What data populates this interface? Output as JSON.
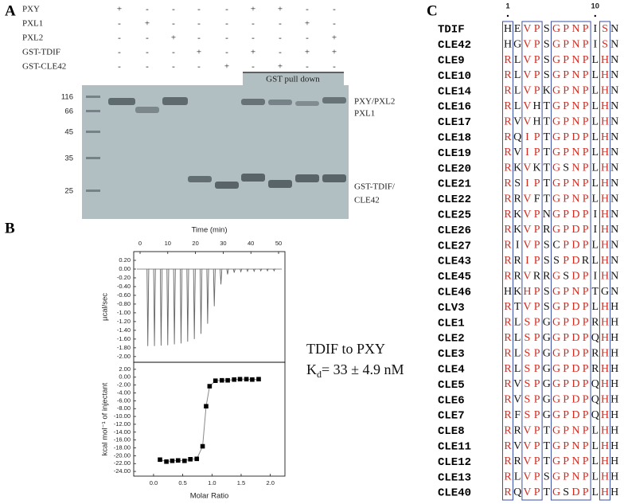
{
  "gel": {
    "label": "A",
    "rows": [
      {
        "name": "PXY",
        "lanes": [
          "+",
          "-",
          "-",
          "-",
          "-",
          "+",
          "+",
          "-",
          "-"
        ]
      },
      {
        "name": "PXL1",
        "lanes": [
          "-",
          "+",
          "-",
          "-",
          "-",
          "-",
          "-",
          "+",
          "-"
        ]
      },
      {
        "name": "PXL2",
        "lanes": [
          "-",
          "-",
          "+",
          "-",
          "-",
          "-",
          "-",
          "-",
          "+"
        ]
      },
      {
        "name": "GST-TDIF",
        "lanes": [
          "-",
          "-",
          "-",
          "+",
          "-",
          "+",
          "-",
          "+",
          "+"
        ]
      },
      {
        "name": "GST-CLE42",
        "lanes": [
          "-",
          "-",
          "-",
          "-",
          "+",
          "-",
          "+",
          "-",
          "-"
        ]
      }
    ],
    "pull_down": "GST pull down",
    "markers": [
      116,
      66,
      45,
      35,
      25
    ],
    "band_labels": [
      "PXY/PXL2",
      "PXL1",
      "GST-TDIF/",
      "CLE42"
    ]
  },
  "chart_data": [
    {
      "type": "spike",
      "panel_label": "B",
      "xlabel": "Time (min)",
      "ylabel": "µcal/sec",
      "color": "#666666",
      "xlim": [
        -2.3,
        52.3
      ],
      "xticks": [
        0,
        10,
        20,
        30,
        40,
        50
      ],
      "ylim": [
        -2.13,
        0.4
      ],
      "yticks": [
        {
          "value": 0.2,
          "label": "0.20"
        },
        {
          "value": 0,
          "label": "0.00"
        },
        {
          "value": -0.2,
          "label": "-0.20"
        },
        {
          "value": -0.4,
          "label": "-0.40"
        },
        {
          "value": -0.6,
          "label": "-0.60"
        },
        {
          "value": -0.8,
          "label": "-0.80"
        },
        {
          "value": -1.0,
          "label": "-1.00"
        },
        {
          "value": -1.2,
          "label": "-1.20"
        },
        {
          "value": -1.4,
          "label": "-1.40"
        },
        {
          "value": -1.6,
          "label": "-1.60"
        },
        {
          "value": -1.8,
          "label": "-1.80"
        },
        {
          "value": -2.0,
          "label": "-2.00"
        }
      ],
      "x": [
        2.5,
        4.9,
        7.3,
        9.7,
        12.1,
        14.5,
        16.9,
        19.3,
        21.7,
        24.1,
        26.5,
        28.9,
        31.3,
        33.7,
        36.1,
        38.5,
        40.9,
        43.3,
        45.7,
        48.1
      ],
      "values": [
        -1.76,
        -1.76,
        -1.75,
        -1.74,
        -1.72,
        -1.7,
        -1.66,
        -1.6,
        -1.48,
        -1.25,
        -0.85,
        -0.35,
        -0.12,
        -0.08,
        -0.06,
        -0.05,
        -0.05,
        -0.04,
        -0.04,
        -0.04
      ]
    },
    {
      "type": "scatter",
      "xlabel": "Molar Ratio",
      "ylabel": "kcal mol⁻¹ of injectant",
      "color": "#000000",
      "line_color": "#888888",
      "xlim": [
        -0.34,
        2.25
      ],
      "xticks": [
        {
          "value": 0,
          "label": "0.0"
        },
        {
          "value": 0.5,
          "label": "0.5"
        },
        {
          "value": 1,
          "label": "1.0"
        },
        {
          "value": 1.5,
          "label": "1.5"
        },
        {
          "value": 2,
          "label": "2.0"
        }
      ],
      "ylim": [
        -25.2,
        3.8
      ],
      "yticks": [
        {
          "value": 2,
          "label": "2.00"
        },
        {
          "value": 0,
          "label": "0.00"
        },
        {
          "value": -2,
          "label": "-2.00"
        },
        {
          "value": -4,
          "label": "-4.00"
        },
        {
          "value": -6,
          "label": "-6.00"
        },
        {
          "value": -8,
          "label": "-8.00"
        },
        {
          "value": -10,
          "label": "-10.00"
        },
        {
          "value": -12,
          "label": "-12.00"
        },
        {
          "value": -14,
          "label": "-14.00"
        },
        {
          "value": -16,
          "label": "-16.00"
        },
        {
          "value": -18,
          "label": "-18.00"
        },
        {
          "value": -20,
          "label": "-20.00"
        },
        {
          "value": -22,
          "label": "-22.00"
        },
        {
          "value": -24,
          "label": "-24.00"
        }
      ],
      "x": [
        0.11,
        0.22,
        0.32,
        0.42,
        0.53,
        0.63,
        0.74,
        0.84,
        0.9,
        0.96,
        1.06,
        1.17,
        1.27,
        1.38,
        1.48,
        1.59,
        1.69,
        1.8
      ],
      "values": [
        -21.0,
        -21.5,
        -21.3,
        -21.2,
        -21.3,
        -20.9,
        -20.8,
        -17.6,
        -7.4,
        -2.3,
        -0.9,
        -0.8,
        -0.8,
        -0.6,
        -0.5,
        -0.5,
        -0.6,
        -0.5
      ],
      "annotation": "TDIF to PXY",
      "kd": {
        "symbol": "K",
        "subscript": "d",
        "value": "= 33 ± 4.9 nM"
      }
    }
  ],
  "alignment": {
    "label": "C",
    "ruler": [
      1,
      10
    ],
    "names": [
      "TDIF",
      "CLE42",
      "CLE9",
      "CLE10",
      "CLE14",
      "CLE16",
      "CLE17",
      "CLE18",
      "CLE19",
      "CLE20",
      "CLE21",
      "CLE22",
      "CLE25",
      "CLE26",
      "CLE27",
      "CLE43",
      "CLE45",
      "CLE46",
      "CLV3",
      "CLE1",
      "CLE2",
      "CLE3",
      "CLE4",
      "CLE5",
      "CLE6",
      "CLE7",
      "CLE8",
      "CLE11",
      "CLE12",
      "CLE13",
      "CLE40"
    ],
    "sequences": [
      "HEVPSGPNPISN",
      "HGVPSGPNPISN",
      "RLVPSGPNPLHN",
      "RLVPSGPNPLHN",
      "RLVPKGPNPLHN",
      "RLVHTGPNPLHN",
      "RVVHTGPNPLHN",
      "RQIPTGPDPLHN",
      "RVIPTGPNPLHN",
      "RKVKTGSNPLHN",
      "RSIPTGPNPLHN",
      "RRVFTGPNPLHN",
      "RKVPNGPDPIHN",
      "RKVPRGPDPIHN",
      "RIVPSCPDPLHN",
      "RRIPSSPDRLHN",
      "RRVRRGSDPIHN",
      "HKHPSGPNPTGN",
      "RTVPSGPDPLHH",
      "RLSPGGPDPRHH",
      "RLSPGGPDPQHH",
      "RLSPGGPDPRHH",
      "RLSPGGPDPRHH",
      "RVSPGGPDPQHH",
      "RVSPGGPDPQHH",
      "RFSPGGPDPQHH",
      "RRVPTGPNPLHH",
      "RVVPTGPNPLHH",
      "RRVPTGPNPLHH",
      "RLVPSGPNPLHH",
      "RQVPTGSDPLHH"
    ]
  }
}
